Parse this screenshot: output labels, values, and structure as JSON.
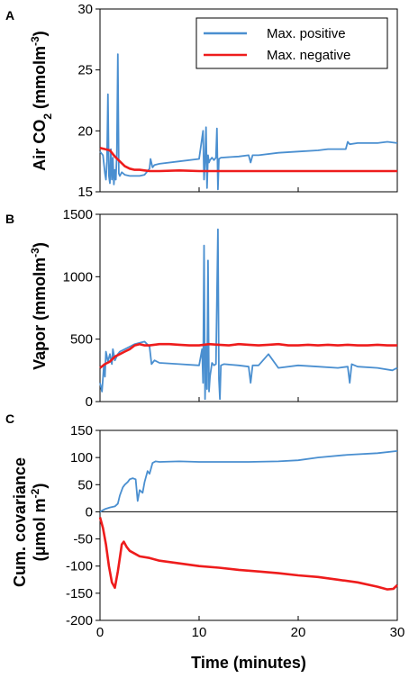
{
  "colors": {
    "positive": "#4a8fd0",
    "negative": "#ee1c1c",
    "axis": "#000000"
  },
  "chart_data": [
    {
      "panel": "A",
      "type": "line",
      "ylabel": "Air CO2 (mmolm-3)",
      "ylabel_parts": {
        "a": "Air CO",
        "b": "2",
        "c": " (mmolm",
        "d": "-3",
        "e": ")"
      },
      "ylim": [
        15,
        30
      ],
      "yticks": [
        "15",
        "20",
        "25",
        "30"
      ],
      "xlim": [
        0,
        30
      ],
      "grid": false,
      "legend": {
        "placement": "top-right",
        "entries": [
          "Max. positive",
          "Max. negative"
        ]
      },
      "series": [
        {
          "name": "Max. positive",
          "x": [
            0,
            0.3,
            0.5,
            0.6,
            0.7,
            0.8,
            0.9,
            1.0,
            1.1,
            1.2,
            1.3,
            1.4,
            1.5,
            1.6,
            1.7,
            1.8,
            1.9,
            2.0,
            2.2,
            2.5,
            3.0,
            3.5,
            4.0,
            4.5,
            4.9,
            5.0,
            5.1,
            5.3,
            5.5,
            6,
            8,
            10,
            10.4,
            10.5,
            10.6,
            10.7,
            10.8,
            10.9,
            11.0,
            11.1,
            11.3,
            11.5,
            11.7,
            11.8,
            11.9,
            12.0,
            12.2,
            14,
            15,
            15.2,
            15.4,
            16,
            18,
            20,
            22,
            23,
            24,
            24.8,
            25.0,
            25.2,
            26,
            28,
            29,
            30
          ],
          "y": [
            18.3,
            18.0,
            16.5,
            16.0,
            17.5,
            23.0,
            16.3,
            15.7,
            18.5,
            16.0,
            17.8,
            15.6,
            16.8,
            16.0,
            18.2,
            26.3,
            16.5,
            16.3,
            16.6,
            16.4,
            16.3,
            16.3,
            16.3,
            16.4,
            16.8,
            16.9,
            17.7,
            17.0,
            17.2,
            17.3,
            17.5,
            17.7,
            20.0,
            16.0,
            17.5,
            20.3,
            15.3,
            18.0,
            17.4,
            17.6,
            17.8,
            17.6,
            17.8,
            20.2,
            15.2,
            17.7,
            17.8,
            17.9,
            18.0,
            17.4,
            18.0,
            18.0,
            18.2,
            18.3,
            18.4,
            18.5,
            18.5,
            18.5,
            19.1,
            18.9,
            19.0,
            19.0,
            19.1,
            19.0
          ]
        },
        {
          "name": "Max. negative",
          "x": [
            0,
            0.5,
            1.0,
            1.5,
            2.0,
            2.5,
            3.0,
            3.5,
            4.0,
            4.5,
            5.0,
            6,
            8,
            10,
            15,
            20,
            25,
            30
          ],
          "y": [
            18.6,
            18.5,
            18.4,
            17.9,
            17.5,
            17.1,
            16.9,
            16.8,
            16.8,
            16.75,
            16.7,
            16.7,
            16.75,
            16.7,
            16.7,
            16.7,
            16.7,
            16.7
          ]
        }
      ]
    },
    {
      "panel": "B",
      "type": "line",
      "ylabel": "Vapor (mmolm-3)",
      "ylabel_parts": {
        "a": "Vapor (mmolm",
        "b": "-3",
        "c": ")"
      },
      "ylim": [
        0,
        1500
      ],
      "yticks": [
        "0",
        "500",
        "1000",
        "1500"
      ],
      "xlim": [
        0,
        30
      ],
      "grid": false,
      "series": [
        {
          "name": "Max. positive",
          "x": [
            0,
            0.2,
            0.4,
            0.5,
            0.6,
            0.8,
            1.0,
            1.2,
            1.3,
            1.5,
            1.8,
            2.0,
            2.5,
            3.0,
            3.5,
            4.0,
            4.5,
            5.0,
            5.2,
            5.5,
            6,
            8,
            10,
            10.3,
            10.4,
            10.5,
            10.6,
            10.7,
            10.8,
            10.9,
            11.0,
            11.1,
            11.3,
            11.5,
            11.7,
            11.9,
            12.0,
            12.1,
            12.2,
            12.5,
            14,
            15,
            15.2,
            15.4,
            16,
            17,
            18,
            20,
            22,
            24,
            25,
            25.2,
            25.4,
            26,
            28,
            29.5,
            30
          ],
          "y": [
            150,
            80,
            300,
            200,
            400,
            320,
            380,
            300,
            420,
            330,
            380,
            400,
            420,
            440,
            460,
            470,
            480,
            440,
            300,
            330,
            310,
            300,
            290,
            420,
            150,
            1250,
            20,
            450,
            100,
            1130,
            80,
            200,
            310,
            290,
            300,
            1380,
            180,
            20,
            290,
            300,
            290,
            280,
            150,
            290,
            290,
            380,
            270,
            290,
            280,
            270,
            280,
            150,
            300,
            280,
            270,
            250,
            270
          ]
        },
        {
          "name": "Max. negative",
          "x": [
            0,
            0.5,
            1.0,
            1.5,
            2.0,
            2.5,
            3.0,
            3.5,
            4.0,
            4.5,
            5.0,
            6,
            7,
            8,
            9,
            10,
            11,
            12,
            13,
            14,
            15,
            16,
            17,
            18,
            19,
            20,
            21,
            22,
            23,
            24,
            25,
            26,
            27,
            28,
            29,
            30
          ],
          "y": [
            270,
            300,
            320,
            360,
            380,
            400,
            420,
            450,
            460,
            450,
            450,
            460,
            460,
            455,
            450,
            450,
            460,
            455,
            450,
            460,
            455,
            450,
            455,
            460,
            450,
            450,
            455,
            450,
            455,
            450,
            455,
            450,
            450,
            455,
            450,
            450
          ]
        }
      ]
    },
    {
      "panel": "C",
      "type": "line",
      "ylabel": "Cum. covariance (μmol m-2)",
      "ylabel_parts": {
        "line1": "Cum. covariance",
        "a": "(μmol m",
        "b": "-2",
        "c": ")"
      },
      "xlabel": "Time (minutes)",
      "ylim": [
        -200,
        150
      ],
      "yticks": [
        "-200",
        "-150",
        "-100",
        "-50",
        "0",
        "50",
        "100",
        "150"
      ],
      "xlim": [
        0,
        30
      ],
      "xticks": [
        "0",
        "10",
        "20",
        "30"
      ],
      "grid": false,
      "series": [
        {
          "name": "Max. positive",
          "x": [
            0,
            0.3,
            0.5,
            1.0,
            1.5,
            1.8,
            2.0,
            2.3,
            2.5,
            2.8,
            3.0,
            3.3,
            3.6,
            3.8,
            4.0,
            4.3,
            4.5,
            4.8,
            5.0,
            5.3,
            5.6,
            6,
            8,
            10,
            12,
            15,
            18,
            20,
            22,
            25,
            28,
            30
          ],
          "y": [
            0,
            3,
            5,
            8,
            10,
            15,
            30,
            45,
            50,
            55,
            60,
            62,
            60,
            20,
            40,
            35,
            55,
            75,
            70,
            90,
            93,
            92,
            93,
            92,
            92,
            92,
            93,
            95,
            100,
            105,
            108,
            112
          ]
        },
        {
          "name": "Max. negative",
          "x": [
            0,
            0.3,
            0.6,
            0.9,
            1.2,
            1.5,
            1.8,
            2.0,
            2.2,
            2.4,
            2.7,
            3.0,
            3.5,
            4.0,
            5.0,
            6,
            8,
            10,
            12,
            14,
            16,
            18,
            20,
            22,
            24,
            26,
            28,
            29,
            29.6,
            30
          ],
          "y": [
            -10,
            -30,
            -60,
            -100,
            -130,
            -140,
            -110,
            -85,
            -60,
            -55,
            -65,
            -72,
            -77,
            -82,
            -85,
            -90,
            -95,
            -100,
            -103,
            -107,
            -110,
            -113,
            -117,
            -120,
            -125,
            -130,
            -138,
            -143,
            -142,
            -135
          ]
        }
      ]
    }
  ]
}
